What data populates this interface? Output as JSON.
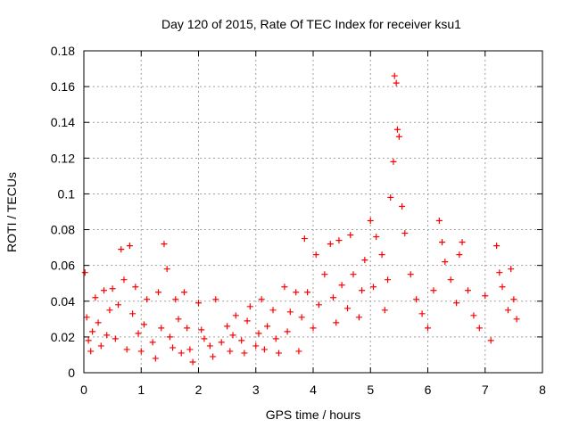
{
  "chart_data": {
    "type": "scatter",
    "title": "Day 120 of 2015, Rate Of TEC Index for receiver ksu1",
    "xlabel": "GPS time / hours",
    "ylabel": "ROTI / TECUs",
    "xlim": [
      0,
      8
    ],
    "ylim": [
      0,
      0.18
    ],
    "xticks": [
      "0",
      "1",
      "2",
      "3",
      "4",
      "5",
      "6",
      "7",
      "8"
    ],
    "yticks": [
      "0",
      "0.02",
      "0.04",
      "0.06",
      "0.08",
      "0.1",
      "0.12",
      "0.14",
      "0.16",
      "0.18"
    ],
    "grid": true,
    "marker": "plus",
    "color": "#ff0000",
    "x": [
      0.02,
      0.05,
      0.08,
      0.12,
      0.15,
      0.2,
      0.25,
      0.3,
      0.35,
      0.4,
      0.45,
      0.5,
      0.55,
      0.6,
      0.65,
      0.7,
      0.75,
      0.8,
      0.85,
      0.9,
      0.95,
      1.0,
      1.05,
      1.1,
      1.2,
      1.25,
      1.3,
      1.35,
      1.4,
      1.45,
      1.5,
      1.55,
      1.6,
      1.65,
      1.7,
      1.75,
      1.8,
      1.85,
      1.9,
      2.0,
      2.05,
      2.1,
      2.2,
      2.25,
      2.3,
      2.4,
      2.5,
      2.55,
      2.6,
      2.65,
      2.75,
      2.8,
      2.85,
      2.9,
      3.0,
      3.05,
      3.1,
      3.15,
      3.2,
      3.3,
      3.35,
      3.4,
      3.5,
      3.55,
      3.6,
      3.7,
      3.75,
      3.8,
      3.85,
      3.9,
      4.0,
      4.05,
      4.1,
      4.2,
      4.3,
      4.35,
      4.4,
      4.45,
      4.5,
      4.6,
      4.65,
      4.7,
      4.8,
      4.85,
      4.9,
      5.0,
      5.05,
      5.1,
      5.2,
      5.25,
      5.3,
      5.35,
      5.4,
      5.42,
      5.45,
      5.47,
      5.5,
      5.55,
      5.6,
      5.7,
      5.8,
      5.9,
      6.0,
      6.1,
      6.2,
      6.25,
      6.3,
      6.4,
      6.5,
      6.55,
      6.6,
      6.7,
      6.8,
      6.9,
      7.0,
      7.1,
      7.2,
      7.25,
      7.3,
      7.4,
      7.45,
      7.5,
      7.55
    ],
    "y": [
      0.056,
      0.031,
      0.018,
      0.012,
      0.023,
      0.042,
      0.028,
      0.015,
      0.046,
      0.021,
      0.035,
      0.047,
      0.019,
      0.038,
      0.069,
      0.052,
      0.013,
      0.071,
      0.033,
      0.048,
      0.022,
      0.012,
      0.027,
      0.041,
      0.017,
      0.008,
      0.045,
      0.025,
      0.072,
      0.058,
      0.02,
      0.014,
      0.041,
      0.03,
      0.011,
      0.045,
      0.025,
      0.013,
      0.006,
      0.039,
      0.024,
      0.019,
      0.015,
      0.009,
      0.041,
      0.017,
      0.026,
      0.012,
      0.021,
      0.032,
      0.018,
      0.011,
      0.029,
      0.037,
      0.015,
      0.022,
      0.041,
      0.013,
      0.026,
      0.035,
      0.019,
      0.011,
      0.048,
      0.023,
      0.034,
      0.045,
      0.012,
      0.031,
      0.075,
      0.045,
      0.025,
      0.066,
      0.038,
      0.055,
      0.072,
      0.042,
      0.028,
      0.074,
      0.049,
      0.036,
      0.077,
      0.055,
      0.031,
      0.046,
      0.063,
      0.085,
      0.048,
      0.076,
      0.066,
      0.035,
      0.052,
      0.098,
      0.118,
      0.166,
      0.162,
      0.136,
      0.132,
      0.093,
      0.078,
      0.055,
      0.041,
      0.033,
      0.025,
      0.046,
      0.085,
      0.073,
      0.062,
      0.052,
      0.039,
      0.066,
      0.073,
      0.046,
      0.032,
      0.025,
      0.043,
      0.018,
      0.071,
      0.056,
      0.048,
      0.035,
      0.058,
      0.041,
      0.03
    ]
  }
}
